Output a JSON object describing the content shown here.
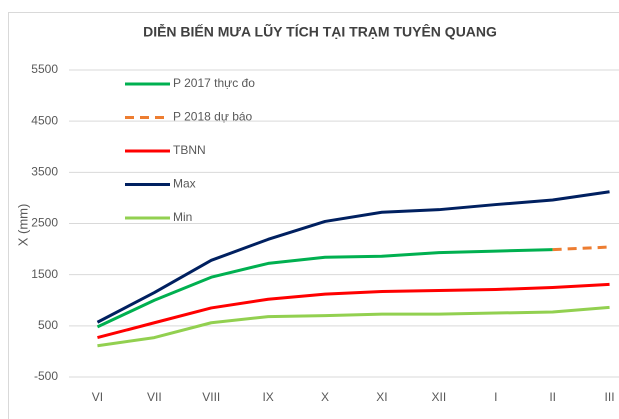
{
  "chart_data": {
    "type": "line",
    "title": "DIỄN BIẾN MƯA LŨY TÍCH TẠI TRẠM TUYÊN QUANG",
    "y_label": "X (mm)",
    "categories": [
      "VI",
      "VII",
      "VIII",
      "IX",
      "X",
      "XI",
      "XII",
      "I",
      "II",
      "III"
    ],
    "series": [
      {
        "name": "P 2017 thực đo",
        "color": "#00b050",
        "values": [
          480,
          1000,
          1450,
          1720,
          1840,
          1860,
          1930,
          1960,
          1990,
          null
        ]
      },
      {
        "name": "P 2018 dự báo",
        "color": "#ed7d31",
        "dashed": true,
        "values": [
          null,
          null,
          null,
          null,
          null,
          null,
          null,
          null,
          1990,
          2040
        ]
      },
      {
        "name": "TBNN",
        "color": "#ff0000",
        "values": [
          270,
          560,
          850,
          1020,
          1120,
          1170,
          1190,
          1210,
          1250,
          1310
        ]
      },
      {
        "name": "Max",
        "color": "#002060",
        "values": [
          570,
          1150,
          1780,
          2190,
          2540,
          2720,
          2770,
          2870,
          2960,
          3120
        ]
      },
      {
        "name": "Min",
        "color": "#92d050",
        "values": [
          110,
          270,
          560,
          680,
          700,
          730,
          730,
          750,
          770,
          860
        ]
      }
    ],
    "ylim": [
      -500,
      5500
    ],
    "yticks": [
      -500,
      500,
      1500,
      2500,
      3500,
      4500,
      5500
    ],
    "grid": true,
    "legend": "upper left"
  }
}
